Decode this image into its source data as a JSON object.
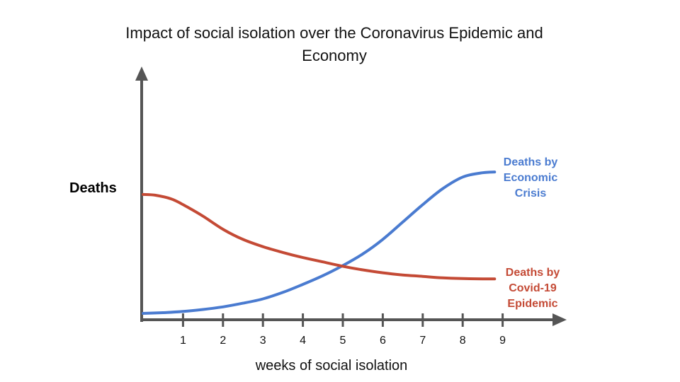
{
  "chart_data": {
    "type": "line",
    "title": [
      "Impact of social isolation over the Coronavirus Epidemic and",
      "Economy"
    ],
    "xlabel": "weeks of social isolation",
    "ylabel": "Deaths",
    "x_ticks": [
      "1",
      "2",
      "3",
      "4",
      "5",
      "6",
      "7",
      "8",
      "9"
    ],
    "xlim": [
      0,
      10
    ],
    "ylim": [
      0,
      100
    ],
    "grid": false,
    "series": [
      {
        "name": [
          "Deaths by",
          "Economic",
          "Crisis"
        ],
        "color": "#4a7bd0",
        "x": [
          0,
          0.5,
          1,
          1.5,
          2,
          2.5,
          3,
          3.5,
          4,
          4.5,
          5,
          5.5,
          6,
          6.5,
          7,
          7.5,
          8,
          8.5,
          8.8
        ],
        "y": [
          0,
          0.5,
          1.3,
          2.7,
          4.5,
          7,
          10,
          14.5,
          20,
          26,
          33,
          41,
          51,
          63,
          75,
          86,
          94,
          97,
          97.5
        ]
      },
      {
        "name": [
          "Deaths by",
          "Covid-19",
          "Epidemic"
        ],
        "color": "#c44a35",
        "x": [
          0,
          0.3,
          0.7,
          1,
          1.5,
          2,
          2.5,
          3,
          3.5,
          4,
          4.5,
          5,
          5.5,
          6,
          6.5,
          7,
          7.5,
          8,
          8.5,
          8.8
        ],
        "y": [
          82,
          81.5,
          79,
          75,
          67,
          58,
          51,
          46,
          42,
          38.5,
          35.5,
          32.5,
          30,
          28,
          26.5,
          25.5,
          24.5,
          24,
          23.8,
          23.8
        ]
      }
    ]
  }
}
